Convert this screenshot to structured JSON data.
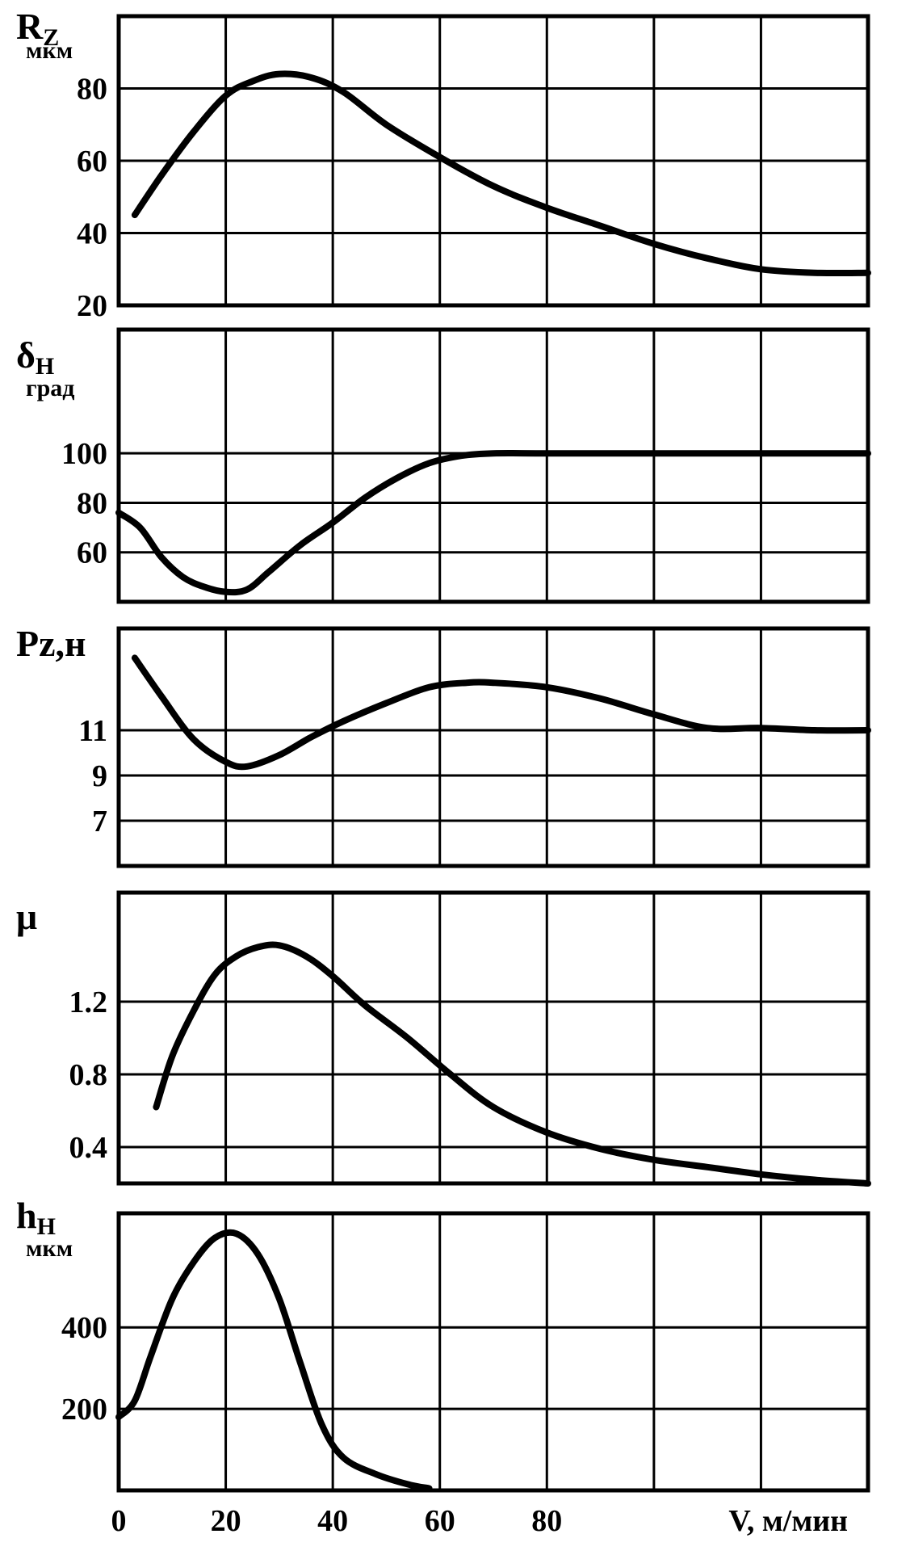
{
  "chart_data": [
    {
      "type": "line",
      "ylabel": "R",
      "ylabel_sub": "Z",
      "unit": "мкм",
      "ylim": [
        20,
        100
      ],
      "yticks": [
        20,
        40,
        60,
        80
      ],
      "series": [
        {
          "x": [
            3,
            8,
            14,
            20,
            25,
            30,
            36,
            42,
            50,
            60,
            70,
            80,
            90,
            100,
            110,
            120,
            130,
            140
          ],
          "y": [
            45,
            56,
            68,
            78,
            82,
            84,
            83,
            79,
            70,
            61,
            53,
            47,
            42,
            37,
            33,
            30,
            29,
            29
          ]
        }
      ]
    },
    {
      "type": "line",
      "ylabel": "δ",
      "ylabel_sub": "Н",
      "unit": "град",
      "ylim": [
        40,
        150
      ],
      "yticks": [
        60,
        80,
        100
      ],
      "series": [
        {
          "x": [
            0,
            4,
            8,
            12,
            16,
            20,
            24,
            28,
            34,
            40,
            46,
            52,
            58,
            64,
            70,
            80,
            100,
            120,
            140
          ],
          "y": [
            76,
            70,
            58,
            50,
            46,
            44,
            45,
            52,
            63,
            72,
            82,
            90,
            96,
            99,
            100,
            100,
            100,
            100,
            100
          ]
        }
      ]
    },
    {
      "type": "line",
      "ylabel": "Pz,н",
      "unit": "",
      "ylim": [
        5,
        15.5
      ],
      "yticks": [
        7,
        9,
        11
      ],
      "series": [
        {
          "x": [
            3,
            8,
            14,
            20,
            24,
            30,
            36,
            42,
            50,
            58,
            65,
            70,
            80,
            90,
            100,
            110,
            120,
            130,
            140
          ],
          "y": [
            14.2,
            12.5,
            10.6,
            9.6,
            9.4,
            9.9,
            10.7,
            11.4,
            12.2,
            12.9,
            13.1,
            13.1,
            12.9,
            12.4,
            11.7,
            11.1,
            11.1,
            11.0,
            11.0
          ]
        }
      ]
    },
    {
      "type": "line",
      "ylabel": "μ",
      "unit": "",
      "ylim": [
        0.2,
        1.8
      ],
      "yticks": [
        0.4,
        0.8,
        1.2
      ],
      "series": [
        {
          "x": [
            7,
            10,
            14,
            18,
            22,
            26,
            30,
            35,
            40,
            46,
            54,
            62,
            70,
            80,
            90,
            100,
            110,
            120,
            130,
            140
          ],
          "y": [
            0.62,
            0.9,
            1.15,
            1.35,
            1.45,
            1.5,
            1.51,
            1.45,
            1.34,
            1.18,
            1.0,
            0.8,
            0.62,
            0.48,
            0.39,
            0.33,
            0.29,
            0.25,
            0.22,
            0.2
          ]
        }
      ]
    },
    {
      "type": "line",
      "ylabel": "h",
      "ylabel_sub": "Н",
      "unit": "мкм",
      "ylim": [
        0,
        680
      ],
      "yticks": [
        200,
        400
      ],
      "series": [
        {
          "x": [
            0,
            3,
            6,
            10,
            14,
            18,
            22,
            26,
            30,
            34,
            38,
            42,
            48,
            54,
            58
          ],
          "y": [
            180,
            220,
            330,
            470,
            560,
            620,
            630,
            580,
            470,
            310,
            160,
            80,
            40,
            15,
            5
          ]
        }
      ]
    }
  ],
  "x_axis": {
    "ticks": [
      {
        "x": 0,
        "label": "0"
      },
      {
        "x": 20,
        "label": "20"
      },
      {
        "x": 40,
        "label": "40"
      },
      {
        "x": 60,
        "label": "60"
      },
      {
        "x": 80,
        "label": "80"
      }
    ],
    "xlabel": "V, м/мин",
    "xlim": [
      0,
      140
    ]
  }
}
